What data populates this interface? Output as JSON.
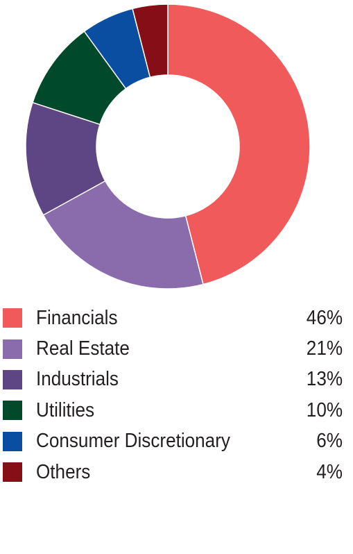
{
  "chart_data": {
    "type": "pie",
    "style": "donut",
    "legend_position": "bottom",
    "categories": [
      "Financials",
      "Real Estate",
      "Industrials",
      "Utilities",
      "Consumer Discretionary",
      "Others"
    ],
    "values": [
      46,
      21,
      13,
      10,
      6,
      4
    ],
    "value_labels": [
      "46%",
      "21%",
      "13%",
      "10%",
      "6%",
      "4%"
    ],
    "colors": [
      "#f05a5b",
      "#8a6bab",
      "#5e4684",
      "#004a2b",
      "#0a4ea1",
      "#860e16"
    ]
  }
}
